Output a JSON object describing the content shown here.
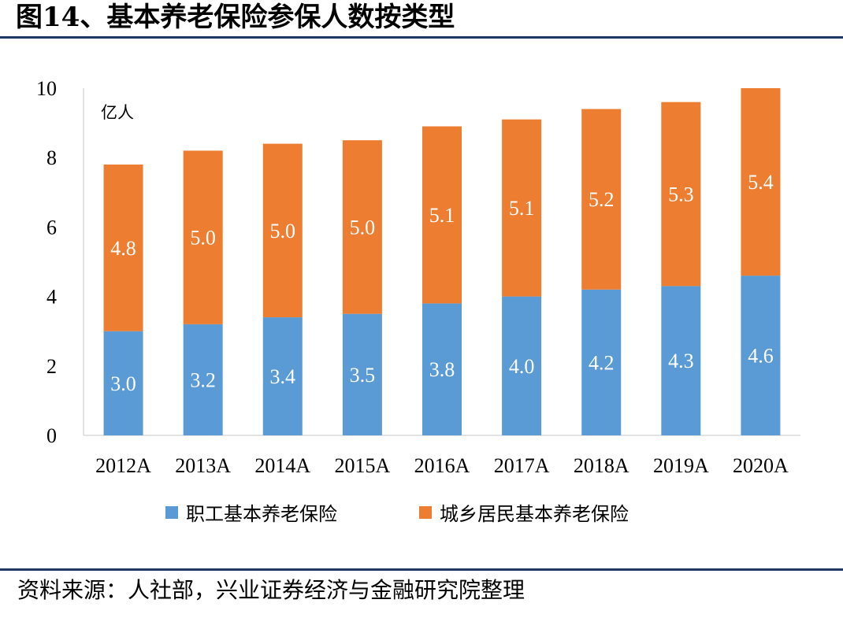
{
  "figure": {
    "title": "图14、基本养老保险参保人数按类型",
    "source": "资料来源：人社部，兴业证券经济与金融研究院整理"
  },
  "chart_data": {
    "type": "bar",
    "stacked": true,
    "unit_label": "亿人",
    "categories": [
      "2012A",
      "2013A",
      "2014A",
      "2015A",
      "2016A",
      "2017A",
      "2018A",
      "2019A",
      "2020A"
    ],
    "series": [
      {
        "name": "职工基本养老保险",
        "color": "#5b9bd5",
        "values": [
          3.0,
          3.2,
          3.4,
          3.5,
          3.8,
          4.0,
          4.2,
          4.3,
          4.6
        ],
        "labels": [
          "3.0",
          "3.2",
          "3.4",
          "3.5",
          "3.8",
          "4.0",
          "4.2",
          "4.3",
          "4.6"
        ]
      },
      {
        "name": "城乡居民基本养老保险",
        "color": "#ed7d31",
        "values": [
          4.8,
          5.0,
          5.0,
          5.0,
          5.1,
          5.1,
          5.2,
          5.3,
          5.4
        ],
        "labels": [
          "4.8",
          "5.0",
          "5.0",
          "5.0",
          "5.1",
          "5.1",
          "5.2",
          "5.3",
          "5.4"
        ]
      }
    ],
    "yticks": [
      "0",
      "2",
      "4",
      "6",
      "8",
      "10"
    ],
    "ylim": [
      0,
      10
    ],
    "grid": false,
    "legend": "bottom"
  }
}
